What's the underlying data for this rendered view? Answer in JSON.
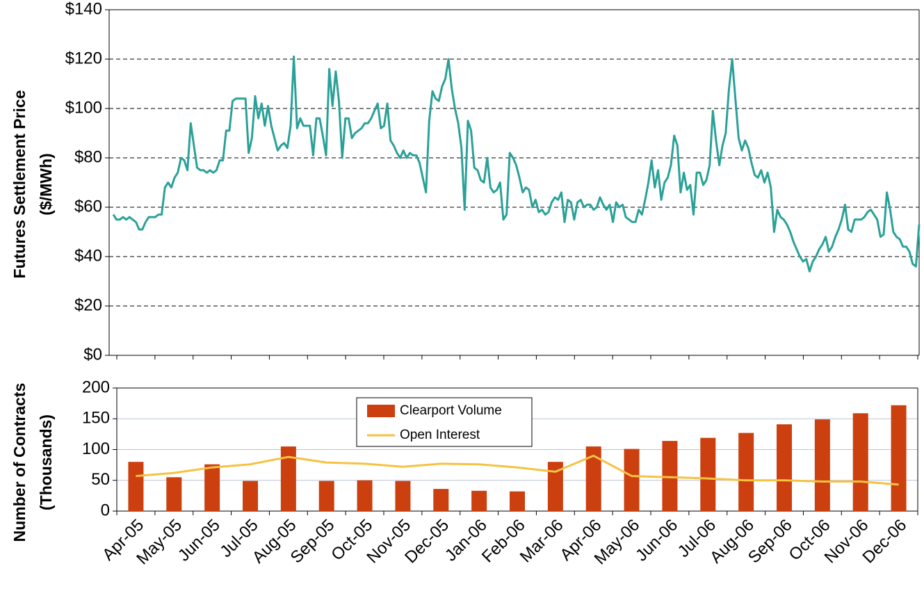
{
  "chart_data": [
    {
      "type": "line",
      "ylabel": [
        "Futures Settlement Price",
        "($/MWh)"
      ],
      "color": "#2aa198",
      "values": [
        57,
        55,
        55,
        56,
        55,
        56,
        55,
        54,
        51,
        51,
        54,
        56,
        56,
        56,
        57,
        57,
        68,
        70,
        68,
        72,
        74,
        80,
        79,
        75,
        94,
        85,
        76,
        75,
        75,
        74,
        75,
        74,
        75,
        79,
        79,
        91,
        91,
        103,
        104,
        104,
        104,
        104,
        82,
        88,
        105,
        96,
        102,
        93,
        101,
        93,
        88,
        83,
        85,
        86,
        84,
        93,
        121,
        92,
        96,
        93,
        93,
        93,
        81,
        96,
        96,
        89,
        81,
        116,
        101,
        115,
        103,
        80,
        96,
        96,
        88,
        90,
        91,
        92,
        94,
        94,
        96,
        99,
        102,
        92,
        93,
        102,
        87,
        85,
        82,
        80,
        83,
        80,
        82,
        81,
        81,
        78,
        72,
        66,
        95,
        107,
        104,
        103,
        109,
        112,
        120,
        108,
        100,
        94,
        84,
        59,
        95,
        91,
        76,
        75,
        71,
        70,
        80,
        68,
        66,
        67,
        70,
        55,
        57,
        82,
        80,
        77,
        72,
        66,
        68,
        67,
        60,
        63,
        58,
        59,
        57,
        58,
        62,
        64,
        63,
        66,
        54,
        63,
        62,
        55,
        62,
        63,
        60,
        61,
        61,
        59,
        60,
        64,
        61,
        59,
        61,
        54,
        62,
        60,
        61,
        56,
        55,
        54,
        54,
        59,
        57,
        63,
        70,
        79,
        68,
        75,
        63,
        70,
        72,
        77,
        89,
        85,
        66,
        74,
        67,
        69,
        57,
        74,
        74,
        69,
        71,
        77,
        99,
        87,
        77,
        85,
        90,
        108,
        120,
        104,
        88,
        83,
        87,
        84,
        78,
        73,
        72,
        75,
        70,
        74,
        68,
        50,
        59,
        56,
        55,
        53,
        50,
        46,
        43,
        40,
        38,
        39,
        34,
        38,
        40,
        43,
        45,
        48,
        42,
        44,
        48,
        51,
        55,
        61,
        51,
        50,
        55,
        55,
        55,
        56,
        58,
        59,
        57,
        55,
        48,
        49,
        66,
        59,
        50,
        48,
        47,
        44,
        44,
        42,
        37,
        36,
        53
      ],
      "ylim": [
        0,
        140
      ],
      "yticks": [
        {
          "value": 0,
          "label": "$0"
        },
        {
          "value": 20,
          "label": "$20"
        },
        {
          "value": 40,
          "label": "$40"
        },
        {
          "value": 60,
          "label": "$60"
        },
        {
          "value": 80,
          "label": "$80"
        },
        {
          "value": 100,
          "label": "$100"
        },
        {
          "value": 120,
          "label": "$120"
        },
        {
          "value": 140,
          "label": "$140"
        }
      ],
      "grid": true
    },
    {
      "type": "bar",
      "ylabel": [
        "Number of Contracts",
        "(Thousands)"
      ],
      "categories": [
        "Apr-05",
        "May-05",
        "Jun-05",
        "Jul-05",
        "Aug-05",
        "Sep-05",
        "Oct-05",
        "Nov-05",
        "Dec-05",
        "Jan-06",
        "Feb-06",
        "Mar-06",
        "Apr-06",
        "May-06",
        "Jun-06",
        "Jul-06",
        "Aug-06",
        "Sep-06",
        "Oct-06",
        "Nov-06",
        "Dec-06"
      ],
      "series": [
        {
          "name": "Clearport Volume",
          "type": "bar",
          "color": "#cc3f0f",
          "values": [
            80,
            55,
            76,
            49,
            105,
            49,
            50,
            49,
            36,
            33,
            32,
            80,
            105,
            101,
            114,
            119,
            127,
            141,
            149,
            159,
            172
          ]
        },
        {
          "name": "Open Interest",
          "type": "line",
          "color": "#f5c242",
          "values": [
            57,
            62,
            71,
            76,
            88,
            79,
            77,
            72,
            77,
            76,
            71,
            64,
            90,
            57,
            55,
            53,
            50,
            50,
            48,
            48,
            43
          ]
        }
      ],
      "ylim": [
        0,
        200
      ],
      "yticks": [
        0,
        50,
        100,
        150,
        200
      ],
      "grid": true
    }
  ]
}
